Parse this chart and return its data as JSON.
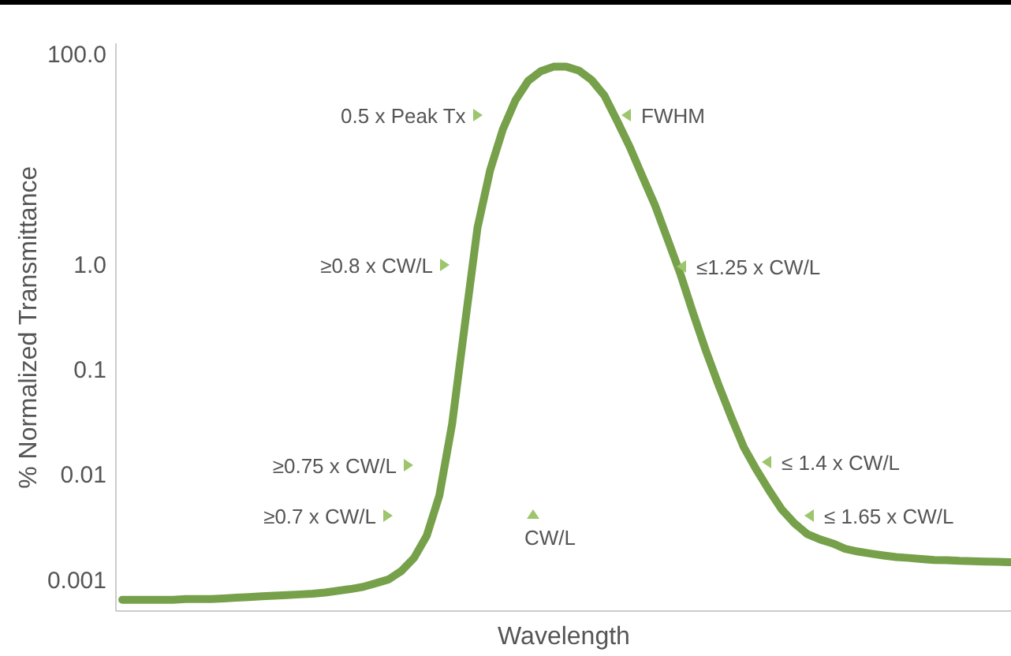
{
  "chart_data": {
    "type": "line",
    "xlabel": "Wavelength",
    "ylabel": "% Normalized Transmittance",
    "categories": [
      null,
      null,
      null,
      null,
      null,
      null,
      null,
      null,
      null,
      null,
      null,
      null,
      null,
      null,
      null,
      null,
      null,
      null,
      null,
      null,
      null,
      null,
      null,
      null,
      null,
      null,
      null,
      null,
      null,
      null,
      null,
      null,
      null,
      null,
      null,
      null,
      null,
      null,
      null,
      null,
      null,
      null,
      null,
      null,
      null,
      null,
      null,
      null,
      null,
      null,
      null,
      null,
      null,
      null,
      null,
      null,
      null,
      null,
      null,
      null,
      null,
      null,
      null,
      null,
      null,
      null,
      null,
      null,
      null,
      null,
      null
    ],
    "series": [
      {
        "color": "#76a04a",
        "values": [
          0.00064,
          0.00064,
          0.00064,
          0.00064,
          0.00064,
          0.00065,
          0.00065,
          0.00065,
          0.00066,
          0.00067,
          0.00068,
          0.00069,
          0.0007,
          0.00071,
          0.00072,
          0.00073,
          0.00075,
          0.00078,
          0.00081,
          0.00085,
          0.00092,
          0.001,
          0.0012,
          0.0016,
          0.0026,
          0.0063,
          0.03,
          0.26,
          2.2,
          7.8,
          19,
          36,
          55,
          68,
          75,
          75,
          69,
          56,
          40,
          23,
          13,
          6.8,
          3.6,
          1.7,
          0.8,
          0.34,
          0.15,
          0.071,
          0.035,
          0.018,
          0.011,
          0.007,
          0.0046,
          0.0034,
          0.0027,
          0.0024,
          0.0022,
          0.00195,
          0.00184,
          0.00176,
          0.00169,
          0.00163,
          0.0016,
          0.00156,
          0.00153,
          0.00152,
          0.0015,
          0.00149,
          0.00148,
          0.00147,
          0.00146
        ]
      }
    ],
    "log": true,
    "ylim": [
      0.0005,
      125
    ],
    "yticks": [
      {
        "value": 100,
        "label": "100.0"
      },
      {
        "value": 1,
        "label": "1.0"
      },
      0.1,
      0.01,
      0.001
    ],
    "tick_labels": "y",
    "annotations": [
      "0.5 x Peak Tx",
      "FWHM",
      "≥0.8 x CW/L",
      "≤1.25 x CW/L",
      "≥0.75 x CW/L",
      "≤ 1.4 x CW/L",
      "≥0.7 x CW/L",
      "≤ 1.65 x CW/L",
      "CW/L"
    ]
  }
}
